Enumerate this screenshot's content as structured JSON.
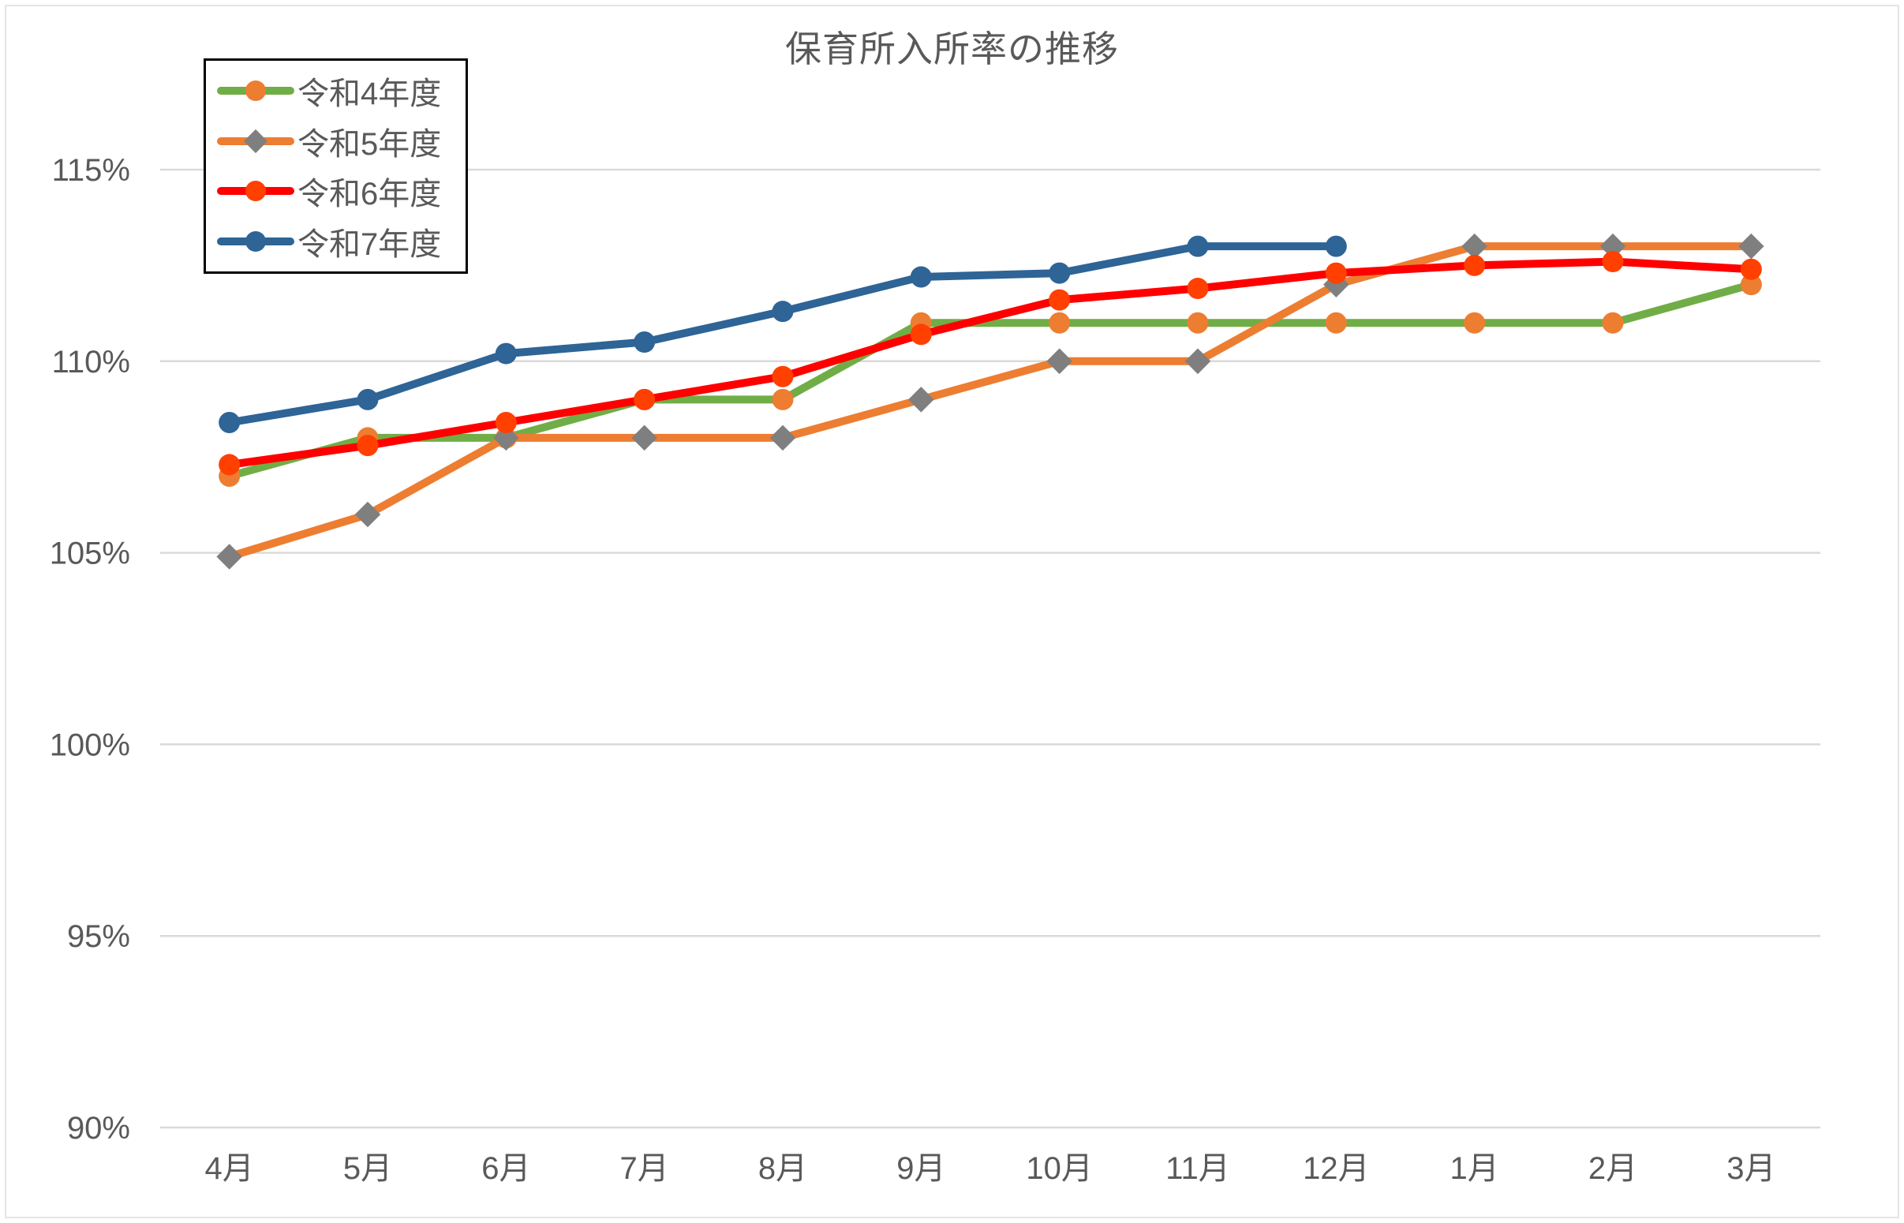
{
  "chart_data": {
    "type": "line",
    "title": "保育所入所率の推移",
    "categories": [
      "4月",
      "5月",
      "6月",
      "7月",
      "8月",
      "9月",
      "10月",
      "11月",
      "12月",
      "1月",
      "2月",
      "3月"
    ],
    "y_ticks": [
      {
        "value": 90,
        "label": "90%"
      },
      {
        "value": 95,
        "label": "95%"
      },
      {
        "value": 100,
        "label": "100%"
      },
      {
        "value": 105,
        "label": "105%"
      },
      {
        "value": 110,
        "label": "110%"
      },
      {
        "value": 115,
        "label": "115%"
      }
    ],
    "ylim": [
      90,
      116.5
    ],
    "grid": true,
    "legend_position": "top-left",
    "series": [
      {
        "name": "令和4年度",
        "line_color": "#70AD47",
        "marker": "circle",
        "marker_color": "#ED7D31",
        "values": [
          107.0,
          108.0,
          108.0,
          109.0,
          109.0,
          111.0,
          111.0,
          111.0,
          111.0,
          111.0,
          111.0,
          112.0
        ]
      },
      {
        "name": "令和5年度",
        "line_color": "#ED7D31",
        "marker": "diamond",
        "marker_color": "#7F7F7F",
        "values": [
          104.9,
          106.0,
          108.0,
          108.0,
          108.0,
          109.0,
          110.0,
          110.0,
          112.0,
          113.0,
          113.0,
          113.0
        ]
      },
      {
        "name": "令和6年度",
        "line_color": "#FF0000",
        "marker": "circle",
        "marker_color": "#FF4000",
        "values": [
          107.3,
          107.8,
          108.4,
          109.0,
          109.6,
          110.7,
          111.6,
          111.9,
          112.3,
          112.5,
          112.6,
          112.4
        ]
      },
      {
        "name": "令和7年度",
        "line_color": "#2E6496",
        "marker": "circle",
        "marker_color": "#2E6496",
        "values": [
          108.4,
          109.0,
          110.2,
          110.5,
          111.3,
          112.2,
          112.3,
          113.0,
          113.0,
          null,
          null,
          null
        ]
      }
    ],
    "colors": {
      "text": "#595959",
      "gridline": "#D9D9D9",
      "legend_border": "#000000",
      "background": "#FFFFFF"
    }
  }
}
